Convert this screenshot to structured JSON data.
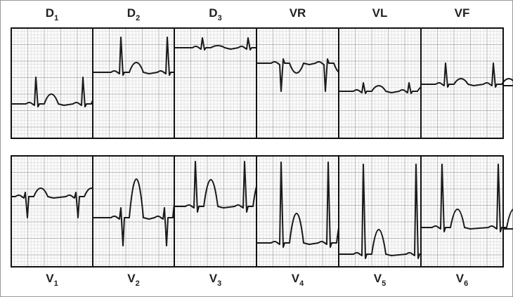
{
  "leads": {
    "top": [
      {
        "letter": "D",
        "sub": "1"
      },
      {
        "letter": "D",
        "sub": "2"
      },
      {
        "letter": "D",
        "sub": "3"
      },
      {
        "letter": "VR"
      },
      {
        "letter": "VL"
      },
      {
        "letter": "VF"
      }
    ],
    "bottom": [
      {
        "letter": "V",
        "sub": "1"
      },
      {
        "letter": "V",
        "sub": "2"
      },
      {
        "letter": "V",
        "sub": "3"
      },
      {
        "letter": "V",
        "sub": "4"
      },
      {
        "letter": "V",
        "sub": "5"
      },
      {
        "letter": "V",
        "sub": "6"
      }
    ]
  }
}
